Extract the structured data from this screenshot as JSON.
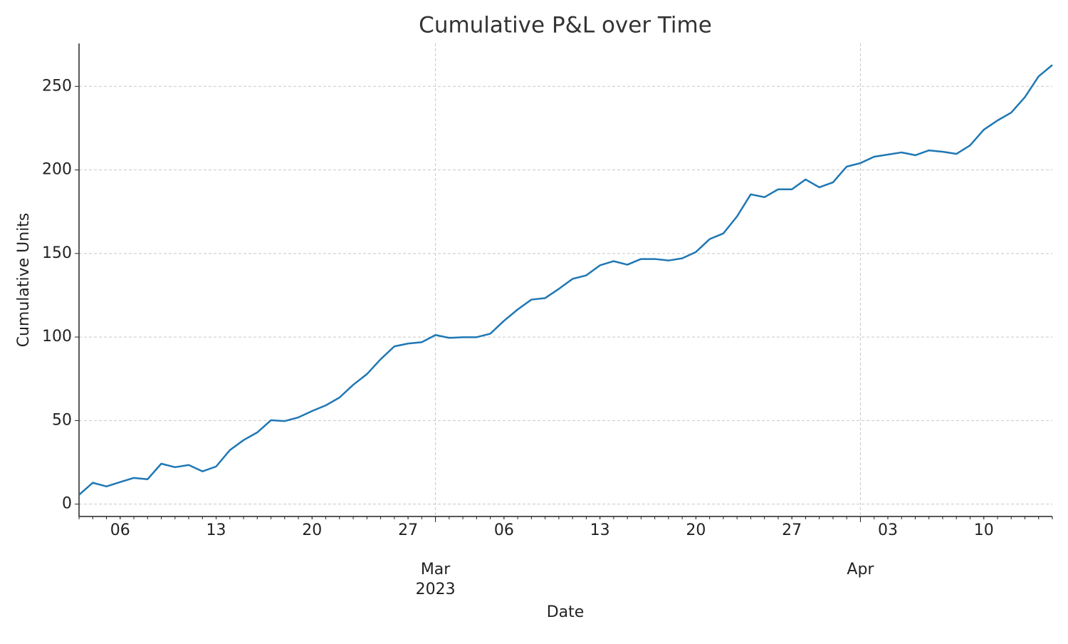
{
  "chart_data": {
    "type": "line",
    "title": "Cumulative P&L over Time",
    "x_label": "Date",
    "y_label": "Cumulative Units",
    "x": [
      "2023-02-03",
      "2023-02-04",
      "2023-02-05",
      "2023-02-06",
      "2023-02-07",
      "2023-02-08",
      "2023-02-09",
      "2023-02-10",
      "2023-02-11",
      "2023-02-12",
      "2023-02-13",
      "2023-02-14",
      "2023-02-15",
      "2023-02-16",
      "2023-02-17",
      "2023-02-18",
      "2023-02-19",
      "2023-02-20",
      "2023-02-21",
      "2023-02-22",
      "2023-02-23",
      "2023-02-24",
      "2023-02-25",
      "2023-02-26",
      "2023-02-27",
      "2023-02-28",
      "2023-03-01",
      "2023-03-02",
      "2023-03-03",
      "2023-03-04",
      "2023-03-05",
      "2023-03-06",
      "2023-03-07",
      "2023-03-08",
      "2023-03-09",
      "2023-03-10",
      "2023-03-11",
      "2023-03-12",
      "2023-03-13",
      "2023-03-14",
      "2023-03-15",
      "2023-03-16",
      "2023-03-17",
      "2023-03-18",
      "2023-03-19",
      "2023-03-20",
      "2023-03-21",
      "2023-03-22",
      "2023-03-23",
      "2023-03-24",
      "2023-03-25",
      "2023-03-26",
      "2023-03-27",
      "2023-03-28",
      "2023-03-29",
      "2023-03-30",
      "2023-03-31",
      "2023-04-01",
      "2023-04-02",
      "2023-04-03",
      "2023-04-04",
      "2023-04-05",
      "2023-04-06",
      "2023-04-07",
      "2023-04-08",
      "2023-04-09",
      "2023-04-10",
      "2023-04-11",
      "2023-04-12",
      "2023-04-13",
      "2023-04-14",
      "2023-04-15"
    ],
    "series": [
      {
        "name": "Cumulative P&L",
        "color": "#1f77b4",
        "values": [
          5.5,
          12.8,
          10.6,
          13.2,
          15.7,
          14.9,
          24.2,
          22.1,
          23.4,
          19.6,
          22.5,
          32.3,
          38.3,
          42.9,
          50.2,
          49.7,
          51.9,
          55.7,
          59.1,
          63.8,
          71.4,
          77.8,
          86.7,
          94.4,
          96.1,
          96.9,
          101.2,
          99.5,
          99.9,
          99.9,
          102,
          109.7,
          116.5,
          122.4,
          123.3,
          128.8,
          134.8,
          136.9,
          142.9,
          145.4,
          143.3,
          146.7,
          146.7,
          145.8,
          147.1,
          150.9,
          158.6,
          162,
          172.2,
          185.4,
          183.7,
          188.4,
          188.4,
          194.3,
          189.6,
          192.6,
          202,
          204.1,
          207.9,
          209.2,
          210.5,
          208.8,
          211.7,
          210.9,
          209.6,
          214.7,
          224.1,
          229.6,
          234.3,
          243.6,
          256,
          262.8
        ]
      }
    ],
    "xlim": [
      "2023-02-03",
      "2023-04-15"
    ],
    "xticks": [
      {
        "value": "2023-02-06",
        "label": "06"
      },
      {
        "value": "2023-02-13",
        "label": "13"
      },
      {
        "value": "2023-02-20",
        "label": "20"
      },
      {
        "value": "2023-02-27",
        "label": "27"
      },
      {
        "value": "2023-03-01",
        "label": "Mar\n2023"
      },
      {
        "value": "2023-03-06",
        "label": "06"
      },
      {
        "value": "2023-03-13",
        "label": "13"
      },
      {
        "value": "2023-03-20",
        "label": "20"
      },
      {
        "value": "2023-03-27",
        "label": "27"
      },
      {
        "value": "2023-04-01",
        "label": "Apr"
      },
      {
        "value": "2023-04-03",
        "label": "03"
      },
      {
        "value": "2023-04-10",
        "label": "10"
      }
    ],
    "ylim": [
      -7.4,
      275.7
    ],
    "yticks": [
      0,
      50,
      100,
      150,
      200,
      250
    ],
    "grid": true
  }
}
